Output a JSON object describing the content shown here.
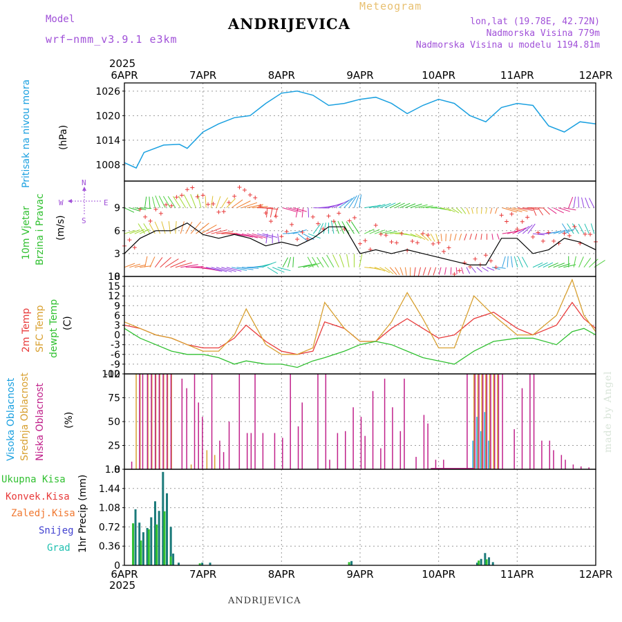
{
  "header": {
    "meteogram": "Meteogram",
    "model_label": "Model",
    "model": "wrf−nmm_v3.9.1 e3km",
    "title": "ANDRIJEVICA",
    "lonlat": "lon,lat (19.78E, 42.72N)",
    "altitude": "Nadmorska Visina 779m",
    "model_altitude": "Nadmorska Visina u modelu 1194.81m",
    "year_top": "2025",
    "year_bottom": "2025",
    "footer": "ANDRIJEVICA",
    "credit": "made by Angel"
  },
  "colors": {
    "pressure": "#1aa0e0",
    "temp2m": "#e83a3a",
    "sfc": "#d8a030",
    "dew": "#30c030",
    "wind_speed": "#000000",
    "gust": "#e83a3a",
    "high": "#1aa0e0",
    "mid": "#d8a030",
    "low": "#c0208a",
    "total": "#30c030",
    "conv": "#e83a3a",
    "strat": "#f07830",
    "snow": "#4040d0",
    "grad": "#20c0b0",
    "bar": "#1b7a7a",
    "purple": "#a050d8"
  },
  "chart_data": [
    {
      "type": "line",
      "name": "pressure",
      "ylabel": "Pritisak na nivou mora",
      "unit": "(hPa)",
      "ylim": [
        1004,
        1028
      ],
      "yticks": [
        1008,
        1014,
        1020,
        1026
      ],
      "x_days": [
        0,
        0.15,
        0.25,
        0.5,
        0.7,
        0.8,
        1.0,
        1.2,
        1.4,
        1.6,
        1.8,
        2.0,
        2.2,
        2.4,
        2.6,
        2.8,
        3.0,
        3.2,
        3.4,
        3.6,
        3.8,
        4.0,
        4.2,
        4.4,
        4.6,
        4.8,
        5.0,
        5.2,
        5.4,
        5.6,
        5.8,
        6.0
      ],
      "values": [
        1008.5,
        1007.2,
        1011,
        1012.8,
        1013,
        1012,
        1016,
        1018,
        1019.5,
        1020,
        1023,
        1025.5,
        1026,
        1025,
        1022.5,
        1023,
        1024,
        1024.5,
        1023,
        1020.5,
        1022.5,
        1024,
        1023,
        1020,
        1018.5,
        1022,
        1023,
        1022.5,
        1017.5,
        1016,
        1018.5,
        1018
      ]
    },
    {
      "type": "line",
      "name": "wind",
      "ylabel": "10m Vjetar",
      "ylabel2": "Brzina i Pravac",
      "unit": "(m/s)",
      "compass": [
        "N",
        "S",
        "W",
        "E"
      ],
      "ylim": [
        0,
        12.5
      ],
      "yticks": [
        0,
        3,
        6,
        9
      ],
      "x_days": [
        0,
        0.2,
        0.4,
        0.6,
        0.8,
        1.0,
        1.2,
        1.4,
        1.6,
        1.8,
        2.0,
        2.2,
        2.4,
        2.6,
        2.8,
        3.0,
        3.2,
        3.4,
        3.6,
        3.8,
        4.0,
        4.2,
        4.4,
        4.6,
        4.8,
        5.0,
        5.2,
        5.4,
        5.6,
        5.8,
        6.0
      ],
      "series": [
        {
          "name": "brzina",
          "values": [
            3,
            5,
            6,
            6,
            7,
            5.5,
            5,
            5.5,
            5,
            4,
            4.5,
            4,
            5,
            6.5,
            6.5,
            3,
            3.5,
            3,
            3.5,
            3,
            2.5,
            2,
            1.5,
            1.5,
            5,
            5,
            3,
            3.5,
            5,
            4.5,
            3.5
          ]
        },
        {
          "name": "udari",
          "values": [
            4,
            8,
            9,
            10,
            11,
            10,
            9,
            11,
            10,
            8,
            6,
            5,
            7,
            8,
            7,
            4,
            6,
            5,
            4,
            5,
            4,
            1,
            1.5,
            2,
            8,
            7,
            5,
            5,
            6,
            5,
            4
          ]
        }
      ]
    },
    {
      "type": "line",
      "name": "temperature",
      "ylabels": [
        "2m Temp",
        "SFC Temp",
        "dewpt Temp"
      ],
      "unit": "(C)",
      "ylim": [
        -12,
        18
      ],
      "yticks": [
        -12,
        -9,
        -6,
        -3,
        0,
        3,
        6,
        9,
        12,
        15,
        18
      ],
      "x_days": [
        0,
        0.2,
        0.4,
        0.6,
        0.8,
        1.0,
        1.2,
        1.4,
        1.55,
        1.8,
        2.0,
        2.2,
        2.4,
        2.55,
        2.8,
        3.0,
        3.2,
        3.4,
        3.6,
        3.8,
        4.0,
        4.2,
        4.45,
        4.7,
        5.0,
        5.2,
        5.5,
        5.7,
        5.85,
        6.0
      ],
      "series": [
        {
          "name": "2m Temp",
          "values": [
            3,
            2,
            0,
            -1,
            -3,
            -4,
            -4,
            -1,
            3,
            -2,
            -5,
            -6,
            -5,
            4,
            2,
            -2,
            -2,
            2,
            5,
            2,
            -1,
            0,
            5,
            7,
            2,
            0,
            3,
            10,
            5,
            2
          ]
        },
        {
          "name": "SFC Temp",
          "values": [
            4,
            2,
            0,
            -1,
            -3,
            -5,
            -5,
            0,
            8,
            -3,
            -6,
            -6,
            -4,
            10,
            2,
            -2,
            -2,
            4,
            13,
            5,
            -4,
            -4,
            12,
            6,
            0,
            0,
            6,
            17,
            6,
            1
          ]
        },
        {
          "name": "dewpt Temp",
          "values": [
            2,
            -1,
            -3,
            -5,
            -6,
            -6,
            -7,
            -9,
            -8,
            -9,
            -9,
            -10,
            -8,
            -7,
            -5,
            -3,
            -2,
            -3,
            -5,
            -7,
            -8,
            -9,
            -5,
            -2,
            -1,
            -1,
            -3,
            1,
            2,
            0
          ]
        }
      ]
    },
    {
      "type": "bar",
      "name": "clouds",
      "ylabels": [
        "Visoka Oblacnost",
        "Srednja Oblacnost",
        "Niska Oblacnost"
      ],
      "unit": "(%)",
      "ylim": [
        0,
        100
      ],
      "yticks": [
        0,
        25,
        50,
        75,
        100
      ],
      "series": [
        {
          "name": "Visoka",
          "x_days": [
            4.45,
            4.5,
            4.55,
            4.6,
            4.65
          ],
          "values": [
            30,
            55,
            40,
            60,
            30
          ]
        },
        {
          "name": "Srednja",
          "x_days": [
            0.15,
            0.2,
            0.3,
            0.35,
            0.4,
            0.45,
            0.5,
            0.55,
            0.6,
            0.85,
            1.05,
            1.15,
            4.45,
            4.5,
            4.55,
            4.6,
            4.65,
            4.7,
            4.75
          ],
          "values": [
            100,
            100,
            100,
            100,
            100,
            100,
            100,
            100,
            100,
            5,
            20,
            15,
            100,
            100,
            100,
            100,
            100,
            100,
            100
          ]
        },
        {
          "name": "Niska",
          "x_days": [
            0.08,
            0.18,
            0.22,
            0.28,
            0.33,
            0.38,
            0.43,
            0.48,
            0.53,
            0.58,
            0.72,
            0.78,
            0.88,
            0.93,
            0.98,
            1.1,
            1.2,
            1.25,
            1.32,
            1.45,
            1.55,
            1.6,
            1.65,
            1.75,
            1.9,
            2.0,
            2.1,
            2.2,
            2.25,
            2.45,
            2.55,
            2.6,
            2.7,
            2.8,
            2.9,
            3.0,
            3.05,
            3.15,
            3.25,
            3.3,
            3.4,
            3.5,
            3.55,
            3.7,
            3.8,
            3.85,
            3.95,
            4.05,
            4.35,
            4.45,
            4.5,
            4.55,
            4.6,
            4.65,
            4.7,
            4.75,
            4.8,
            4.95,
            5.05,
            5.15,
            5.2,
            5.3,
            5.4,
            5.45,
            5.55,
            5.6,
            5.7,
            5.8,
            5.9
          ],
          "values": [
            8,
            100,
            100,
            100,
            100,
            100,
            100,
            100,
            100,
            100,
            95,
            85,
            100,
            70,
            55,
            100,
            30,
            18,
            50,
            100,
            38,
            38,
            100,
            38,
            38,
            33,
            100,
            45,
            70,
            100,
            100,
            10,
            38,
            40,
            65,
            55,
            35,
            82,
            22,
            95,
            65,
            40,
            95,
            13,
            57,
            48,
            10,
            10,
            100,
            100,
            100,
            100,
            100,
            100,
            100,
            100,
            100,
            42,
            85,
            100,
            100,
            30,
            30,
            20,
            15,
            10,
            5,
            3,
            2
          ]
        }
      ]
    },
    {
      "type": "bar",
      "name": "precipitation",
      "ylabel": "1hr Precip (mm)",
      "legend": [
        "Ukupna Kisa",
        "Konvek.Kisa",
        "Zaledj.Kisa",
        "Snijeg",
        "Grad"
      ],
      "ylim": [
        0,
        1.8
      ],
      "yticks": [
        0,
        0.36,
        0.72,
        1.08,
        1.44,
        1.8
      ],
      "yticklabels": [
        "0",
        "0.36",
        "0.72",
        "1.08",
        "1.44",
        "1.8"
      ],
      "x_days": [
        0.15,
        0.2,
        0.25,
        0.3,
        0.35,
        0.4,
        0.45,
        0.5,
        0.55,
        0.6,
        0.63,
        0.7,
        1.0,
        1.1,
        2.9,
        4.5,
        4.55,
        4.6,
        4.65,
        4.7
      ],
      "values": [
        1.05,
        0.8,
        0.62,
        0.7,
        0.9,
        1.2,
        1.02,
        1.75,
        1.35,
        0.72,
        0.22,
        0.05,
        0.05,
        0.05,
        0.08,
        0.05,
        0.12,
        0.23,
        0.15,
        0.06
      ]
    }
  ],
  "xaxis": {
    "top": [
      "6APR",
      "7APR",
      "8APR",
      "9APR",
      "10APR",
      "11APR",
      "12APR"
    ],
    "bottom": [
      "6APR",
      "7APR",
      "8APR",
      "9APR",
      "10APR",
      "11APR",
      "12APR"
    ]
  }
}
